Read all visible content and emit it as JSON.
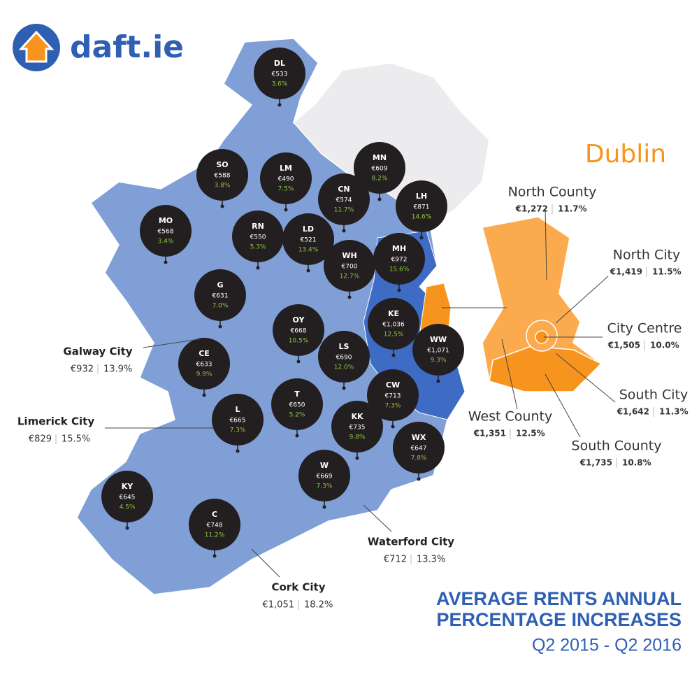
{
  "logo": "daft.ie",
  "counties": [
    {
      "code": "DL",
      "rent": "€533",
      "change": "3.6%"
    },
    {
      "code": "SO",
      "rent": "€588",
      "change": "3.8%"
    },
    {
      "code": "LM",
      "rent": "€490",
      "change": "7.5%"
    },
    {
      "code": "MN",
      "rent": "€609",
      "change": "8.2%"
    },
    {
      "code": "CN",
      "rent": "€574",
      "change": "11.7%"
    },
    {
      "code": "LH",
      "rent": "€871",
      "change": "14.6%"
    },
    {
      "code": "MO",
      "rent": "€568",
      "change": "3.4%"
    },
    {
      "code": "RN",
      "rent": "€550",
      "change": "5.3%"
    },
    {
      "code": "LD",
      "rent": "€521",
      "change": "13.4%"
    },
    {
      "code": "MH",
      "rent": "€972",
      "change": "15.6%"
    },
    {
      "code": "WH",
      "rent": "€700",
      "change": "12.7%"
    },
    {
      "code": "G",
      "rent": "€631",
      "change": "7.0%"
    },
    {
      "code": "KE",
      "rent": "€1,036",
      "change": "12.5%"
    },
    {
      "code": "OY",
      "rent": "€668",
      "change": "10.5%"
    },
    {
      "code": "WW",
      "rent": "€1,071",
      "change": "9.3%"
    },
    {
      "code": "LS",
      "rent": "€690",
      "change": "12.0%"
    },
    {
      "code": "CE",
      "rent": "€633",
      "change": "9.9%"
    },
    {
      "code": "CW",
      "rent": "€713",
      "change": "7.3%"
    },
    {
      "code": "T",
      "rent": "€650",
      "change": "5.2%"
    },
    {
      "code": "L",
      "rent": "€665",
      "change": "7.3%"
    },
    {
      "code": "KK",
      "rent": "€735",
      "change": "9.8%"
    },
    {
      "code": "WX",
      "rent": "€647",
      "change": "7.8%"
    },
    {
      "code": "W",
      "rent": "€669",
      "change": "7.3%"
    },
    {
      "code": "KY",
      "rent": "€645",
      "change": "4.5%"
    },
    {
      "code": "C",
      "rent": "€748",
      "change": "11.2%"
    }
  ],
  "cities": [
    {
      "name": "Galway City",
      "rent": "€932",
      "change": "13.9%"
    },
    {
      "name": "Limerick City",
      "rent": "€829",
      "change": "15.5%"
    },
    {
      "name": "Waterford City",
      "rent": "€712",
      "change": "13.3%"
    },
    {
      "name": "Cork City",
      "rent": "€1,051",
      "change": "18.2%"
    }
  ],
  "dublin": {
    "title": "Dublin",
    "areas": [
      {
        "name": "North County",
        "rent": "€1,272",
        "change": "11.7%"
      },
      {
        "name": "North City",
        "rent": "€1,419",
        "change": "11.5%"
      },
      {
        "name": "City Centre",
        "rent": "€1,505",
        "change": "10.0%"
      },
      {
        "name": "South City",
        "rent": "€1,642",
        "change": "11.3%"
      },
      {
        "name": "West County",
        "rent": "€1,351",
        "change": "12.5%"
      },
      {
        "name": "South County",
        "rent": "€1,735",
        "change": "10.8%"
      }
    ]
  },
  "footer": {
    "line1": "AVERAGE RENTS ANNUAL",
    "line2": "PERCENTAGE INCREASES",
    "period": "Q2 2015 - Q2  2016"
  }
}
